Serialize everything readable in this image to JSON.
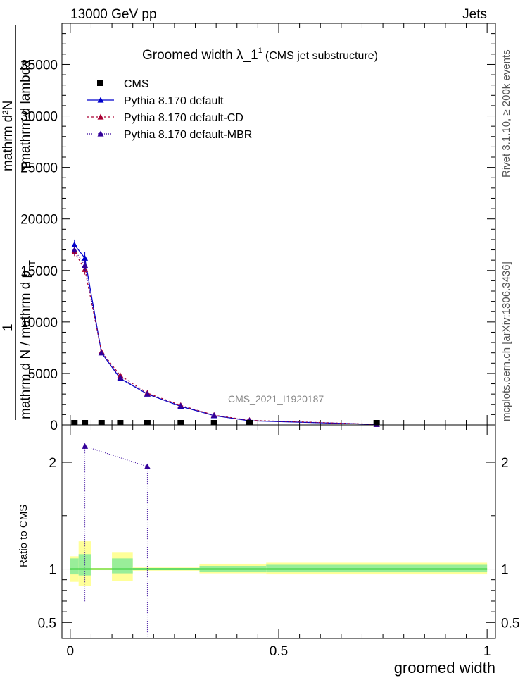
{
  "header": {
    "left": "13000 GeV pp",
    "right": "Jets"
  },
  "side_labels": {
    "rivet": "Rivet 3.1.10, ≥ 200k events",
    "mcplots": "mcplots.cern.ch [arXiv:1306.3436]"
  },
  "chart_data": {
    "type": "line",
    "title_main": "Groomed width  λ_1",
    "title_sup": "1",
    "title_small": "(CMS jet substructure)",
    "watermark": "CMS_2021_I1920187",
    "xlabel": "groomed width",
    "ylabel_parts": [
      "1",
      "mathrm d N / mathrm d p",
      "T",
      "mathrm d p",
      "T",
      "mathrm d lambda",
      "mathrm d²N"
    ],
    "ratio_ylabel": "Ratio to CMS",
    "xlim": [
      -0.02,
      1.02
    ],
    "ylim": [
      0,
      39000
    ],
    "ratio_ylim": [
      0.35,
      2.35
    ],
    "x_ticks": [
      0,
      0.5,
      1
    ],
    "x_tick_labels": [
      "0",
      "0.5",
      "1"
    ],
    "y_ticks": [
      0,
      5000,
      10000,
      15000,
      20000,
      25000,
      30000,
      35000
    ],
    "y_tick_labels": [
      "0",
      "5000",
      "10000",
      "15000",
      "20000",
      "25000",
      "30000",
      "35000"
    ],
    "ratio_ticks": [
      0.5,
      1,
      2
    ],
    "ratio_tick_labels": [
      "0.5",
      "1",
      "2"
    ],
    "legend": [
      {
        "label": "CMS",
        "marker": "square",
        "color": "#000000",
        "dash": ""
      },
      {
        "label": "Pythia 8.170 default",
        "marker": "triangle",
        "color": "#0000cc",
        "dash": ""
      },
      {
        "label": "Pythia 8.170 default-CD",
        "marker": "triangle",
        "color": "#aa0033",
        "dash": "3,3"
      },
      {
        "label": "Pythia 8.170 default-MBR",
        "marker": "triangle",
        "color": "#330099",
        "dash": "1,2"
      }
    ],
    "cms": {
      "x": [
        0.01,
        0.035,
        0.075,
        0.12,
        0.185,
        0.265,
        0.345,
        0.43,
        0.735
      ],
      "y": [
        0,
        0,
        0,
        0,
        0,
        0,
        0,
        0,
        0
      ],
      "color": "#000000"
    },
    "series": [
      {
        "name": "Pythia 8.170 default",
        "color": "#0000cc",
        "dash": "",
        "x": [
          0.01,
          0.035,
          0.075,
          0.12,
          0.185,
          0.265,
          0.345,
          0.43,
          0.735
        ],
        "y": [
          17500,
          16200,
          7000,
          4500,
          3000,
          1800,
          900,
          400,
          50
        ],
        "err": [
          500,
          600,
          200,
          150,
          100,
          80,
          50,
          30,
          10
        ]
      },
      {
        "name": "Pythia 8.170 default-CD",
        "color": "#aa0033",
        "dash": "3,3",
        "x": [
          0.01,
          0.035,
          0.075,
          0.12,
          0.185,
          0.265,
          0.345,
          0.43,
          0.735
        ],
        "y": [
          16800,
          15100,
          7100,
          4800,
          3100,
          1900,
          950,
          450,
          60
        ],
        "err": [
          400,
          500,
          200,
          150,
          100,
          80,
          50,
          30,
          10
        ]
      },
      {
        "name": "Pythia 8.170 default-MBR",
        "color": "#330099",
        "dash": "1,2",
        "x": [
          0.01,
          0.035,
          0.075,
          0.12,
          0.185,
          0.265,
          0.345,
          0.43,
          0.735
        ],
        "y": [
          17000,
          15500,
          7000,
          4600,
          3000,
          1850,
          920,
          420,
          55
        ],
        "err": [
          400,
          500,
          200,
          150,
          100,
          80,
          50,
          30,
          10
        ]
      }
    ],
    "ratio": {
      "mbr_points": [
        {
          "x": 0.035,
          "y": 2.15,
          "err_low": 1.47
        },
        {
          "x": 0.185,
          "y": 1.96,
          "err_low": 1.61
        }
      ],
      "bands": [
        {
          "x0": 0.0,
          "x1": 0.02,
          "yellow": [
            0.88,
            1.12
          ],
          "green": [
            0.95,
            1.1
          ]
        },
        {
          "x0": 0.02,
          "x1": 0.05,
          "yellow": [
            0.84,
            1.26
          ],
          "green": [
            0.94,
            1.14
          ]
        },
        {
          "x0": 0.05,
          "x1": 0.1,
          "yellow": [
            0.99,
            1.01
          ],
          "green": [
            0.995,
            1.005
          ]
        },
        {
          "x0": 0.1,
          "x1": 0.15,
          "yellow": [
            0.89,
            1.16
          ],
          "green": [
            0.96,
            1.1
          ]
        },
        {
          "x0": 0.15,
          "x1": 0.31,
          "yellow": [
            0.985,
            1.015
          ],
          "green": [
            0.99,
            1.01
          ]
        },
        {
          "x0": 0.31,
          "x1": 0.47,
          "yellow": [
            0.96,
            1.05
          ],
          "green": [
            0.975,
            1.03
          ]
        },
        {
          "x0": 0.47,
          "x1": 1.0,
          "yellow": [
            0.95,
            1.06
          ],
          "green": [
            0.97,
            1.04
          ]
        }
      ],
      "line_color": "#33cc33"
    }
  }
}
